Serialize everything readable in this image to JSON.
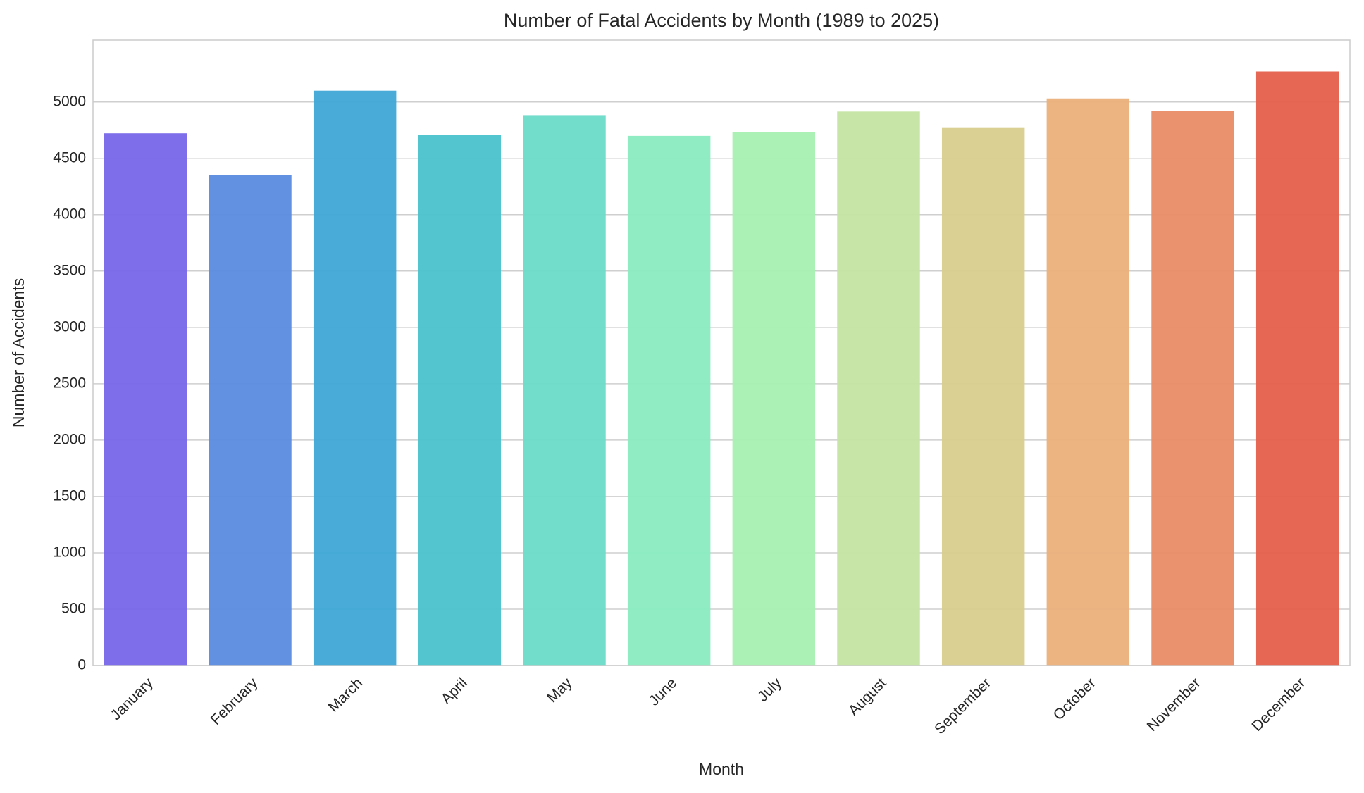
{
  "chart_data": {
    "type": "bar",
    "title": "Number of Fatal Accidents by Month (1989 to 2025)",
    "x_label": "Month",
    "y_label": "Number of Accidents",
    "categories": [
      "January",
      "February",
      "March",
      "April",
      "May",
      "June",
      "July",
      "August",
      "September",
      "October",
      "November",
      "December"
    ],
    "values": [
      4722,
      4352,
      5100,
      4707,
      4877,
      4699,
      4730,
      4915,
      4769,
      5031,
      4923,
      5270
    ],
    "colors": [
      "#7766e8",
      "#5b8be0",
      "#3ea6d6",
      "#4ac2cc",
      "#6cdbc8",
      "#8aecc0",
      "#a6f0b2",
      "#c4e4a2",
      "#d8ce8e",
      "#ebb07a",
      "#e98c66",
      "#e55f4b"
    ],
    "ylim": [
      0,
      5548
    ],
    "yticks": [
      0,
      500,
      1000,
      1500,
      2000,
      2500,
      3000,
      3500,
      4000,
      4500,
      5000
    ],
    "grid": true
  }
}
